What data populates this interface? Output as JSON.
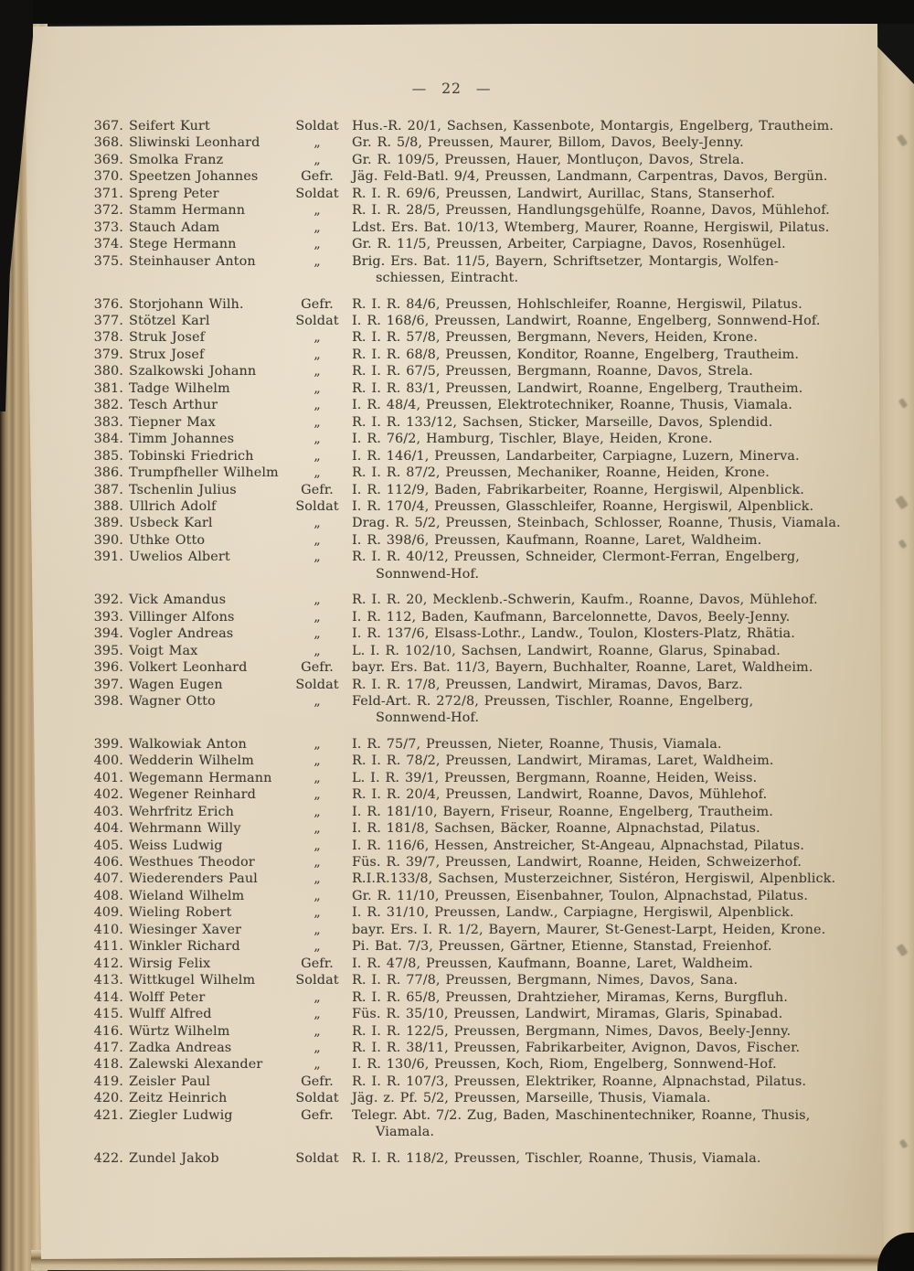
{
  "header": {
    "left_dash": "—",
    "page_number": "22",
    "right_dash": "—"
  },
  "list": {
    "rows": [
      {
        "no": "367.",
        "name": "Seifert Kurt",
        "rank": "Soldat",
        "details": [
          "Hus.-R. 20/1, Sachsen, Kassenbote, Montargis, Engelberg, Trautheim."
        ]
      },
      {
        "no": "368.",
        "name": "Sliwinski Leonhard",
        "rank": "„",
        "details": [
          "Gr. R. 5/8, Preussen, Maurer, Billom, Davos, Beely-Jenny."
        ]
      },
      {
        "no": "369.",
        "name": "Smolka Franz",
        "rank": "„",
        "details": [
          "Gr. R. 109/5, Preussen, Hauer, Montluçon, Davos, Strela."
        ]
      },
      {
        "no": "370.",
        "name": "Speetzen Johannes",
        "rank": "Gefr.",
        "details": [
          "Jäg. Feld-Batl. 9/4, Preussen, Landmann, Carpentras, Davos, Bergün."
        ]
      },
      {
        "no": "371.",
        "name": "Spreng Peter",
        "rank": "Soldat",
        "details": [
          "R. I. R. 69/6, Preussen, Landwirt, Aurillac, Stans, Stanserhof."
        ]
      },
      {
        "no": "372.",
        "name": "Stamm Hermann",
        "rank": "„",
        "details": [
          "R. I. R. 28/5, Preussen, Handlungsgehülfe, Roanne, Davos, Mühlehof."
        ]
      },
      {
        "no": "373.",
        "name": "Stauch Adam",
        "rank": "„",
        "details": [
          "Ldst. Ers. Bat. 10/13, Wtemberg, Maurer, Roanne, Hergiswil, Pilatus."
        ]
      },
      {
        "no": "374.",
        "name": "Stege Hermann",
        "rank": "„",
        "details": [
          "Gr. R. 11/5, Preussen, Arbeiter, Carpiagne, Davos, Rosenhügel."
        ]
      },
      {
        "no": "375.",
        "name": "Steinhauser Anton",
        "rank": "„",
        "details": [
          "Brig. Ers. Bat. 11/5, Bayern, Schriftsetzer, Montargis, Wolfen-",
          "schiessen, Eintracht."
        ]
      },
      {
        "no": "376.",
        "name": "Storjohann Wilh.",
        "rank": "Gefr.",
        "gap_before": true,
        "details": [
          "R. I. R. 84/6, Preussen, Hohlschleifer, Roanne, Hergiswil, Pilatus."
        ]
      },
      {
        "no": "377.",
        "name": "Stötzel Karl",
        "rank": "Soldat",
        "details": [
          "I. R. 168/6, Preussen, Landwirt, Roanne, Engelberg, Sonnwend-Hof."
        ]
      },
      {
        "no": "378.",
        "name": "Struk Josef",
        "rank": "„",
        "details": [
          "R. I. R. 57/8, Preussen, Bergmann, Nevers, Heiden, Krone."
        ]
      },
      {
        "no": "379.",
        "name": "Strux Josef",
        "rank": "„",
        "details": [
          "R. I. R. 68/8, Preussen, Konditor, Roanne, Engelberg, Trautheim."
        ]
      },
      {
        "no": "380.",
        "name": "Szalkowski Johann",
        "rank": "„",
        "details": [
          "R. I. R. 67/5, Preussen, Bergmann, Roanne, Davos, Strela."
        ]
      },
      {
        "no": "381.",
        "name": "Tadge Wilhelm",
        "rank": "„",
        "details": [
          "R. I. R. 83/1, Preussen, Landwirt, Roanne, Engelberg, Trautheim."
        ]
      },
      {
        "no": "382.",
        "name": "Tesch Arthur",
        "rank": "„",
        "details": [
          "I. R. 48/4, Preussen, Elektrotechniker, Roanne, Thusis, Viamala."
        ]
      },
      {
        "no": "383.",
        "name": "Tiepner Max",
        "rank": "„",
        "details": [
          "R. I. R. 133/12, Sachsen, Sticker, Marseille, Davos, Splendid."
        ]
      },
      {
        "no": "384.",
        "name": "Timm Johannes",
        "rank": "„",
        "details": [
          "I. R. 76/2, Hamburg, Tischler, Blaye, Heiden, Krone."
        ]
      },
      {
        "no": "385.",
        "name": "Tobinski Friedrich",
        "rank": "„",
        "details": [
          "I. R. 146/1, Preussen, Landarbeiter, Carpiagne, Luzern, Minerva."
        ]
      },
      {
        "no": "386.",
        "name": "Trumpfheller Wilhelm",
        "rank": "„",
        "details": [
          "R. I. R. 87/2, Preussen, Mechaniker, Roanne, Heiden, Krone."
        ]
      },
      {
        "no": "387.",
        "name": "Tschenlin Julius",
        "rank": "Gefr.",
        "details": [
          "I. R. 112/9, Baden, Fabrikarbeiter, Roanne, Hergiswil, Alpenblick."
        ]
      },
      {
        "no": "388.",
        "name": "Ullrich Adolf",
        "rank": "Soldat",
        "details": [
          "I. R. 170/4, Preussen, Glasschleifer, Roanne, Hergiswil, Alpenblick."
        ]
      },
      {
        "no": "389.",
        "name": "Usbeck Karl",
        "rank": "„",
        "details": [
          "Drag. R. 5/2, Preussen, Steinbach, Schlosser, Roanne, Thusis, Viamala."
        ]
      },
      {
        "no": "390.",
        "name": "Uthke Otto",
        "rank": "„",
        "details": [
          "I. R. 398/6, Preussen, Kaufmann, Roanne, Laret, Waldheim."
        ]
      },
      {
        "no": "391.",
        "name": "Uwelios Albert",
        "rank": "„",
        "details": [
          "R. I. R. 40/12, Preussen, Schneider, Clermont-Ferran, Engelberg,",
          "Sonnwend-Hof."
        ]
      },
      {
        "no": "392.",
        "name": "Vick Amandus",
        "rank": "„",
        "gap_before": true,
        "details": [
          "R. I. R. 20, Mecklenb.-Schwerin, Kaufm., Roanne, Davos, Mühlehof."
        ]
      },
      {
        "no": "393.",
        "name": "Villinger Alfons",
        "rank": "„",
        "details": [
          "I. R. 112, Baden, Kaufmann, Barcelonnette, Davos, Beely-Jenny."
        ]
      },
      {
        "no": "394.",
        "name": "Vogler Andreas",
        "rank": "„",
        "details": [
          "I. R. 137/6, Elsass-Lothr., Landw., Toulon, Klosters-Platz, Rhätia."
        ]
      },
      {
        "no": "395.",
        "name": "Voigt Max",
        "rank": "„",
        "details": [
          "L. I. R. 102/10, Sachsen, Landwirt, Roanne, Glarus, Spinabad."
        ]
      },
      {
        "no": "396.",
        "name": "Volkert Leonhard",
        "rank": "Gefr.",
        "details": [
          "bayr. Ers. Bat. 11/3, Bayern, Buchhalter, Roanne, Laret, Waldheim."
        ]
      },
      {
        "no": "397.",
        "name": "Wagen Eugen",
        "rank": "Soldat",
        "details": [
          "R. I. R. 17/8, Preussen, Landwirt, Miramas, Davos, Barz."
        ]
      },
      {
        "no": "398.",
        "name": "Wagner Otto",
        "rank": "„",
        "details": [
          "Feld-Art. R. 272/8, Preussen, Tischler, Roanne, Engelberg,",
          "Sonnwend-Hof."
        ]
      },
      {
        "no": "399.",
        "name": "Walkowiak Anton",
        "rank": "„",
        "gap_before": true,
        "details": [
          "I. R. 75/7, Preussen, Nieter, Roanne, Thusis, Viamala."
        ]
      },
      {
        "no": "400.",
        "name": "Wedderin Wilhelm",
        "rank": "„",
        "details": [
          "R. I. R. 78/2, Preussen, Landwirt, Miramas, Laret, Waldheim."
        ]
      },
      {
        "no": "401.",
        "name": "Wegemann Hermann",
        "rank": "„",
        "details": [
          "L. I. R. 39/1, Preussen, Bergmann, Roanne, Heiden, Weiss."
        ]
      },
      {
        "no": "402.",
        "name": "Wegener Reinhard",
        "rank": "„",
        "details": [
          "R. I. R. 20/4, Preussen, Landwirt, Roanne, Davos, Mühlehof."
        ]
      },
      {
        "no": "403.",
        "name": "Wehrfritz Erich",
        "rank": "„",
        "details": [
          "I. R. 181/10, Bayern, Friseur, Roanne, Engelberg, Trautheim."
        ]
      },
      {
        "no": "404.",
        "name": "Wehrmann Willy",
        "rank": "„",
        "details": [
          "I. R. 181/8, Sachsen, Bäcker, Roanne, Alpnachstad, Pilatus."
        ]
      },
      {
        "no": "405.",
        "name": "Weiss Ludwig",
        "rank": "„",
        "details": [
          "I. R. 116/6, Hessen, Anstreicher, St-Angeau, Alpnachstad, Pilatus."
        ]
      },
      {
        "no": "406.",
        "name": "Westhues Theodor",
        "rank": "„",
        "details": [
          "Füs. R. 39/7, Preussen, Landwirt, Roanne, Heiden, Schweizerhof."
        ]
      },
      {
        "no": "407.",
        "name": "Wiederenders Paul",
        "rank": "„",
        "details": [
          "R.I.R.133/8, Sachsen, Musterzeichner, Sistéron, Hergiswil, Alpenblick."
        ]
      },
      {
        "no": "408.",
        "name": "Wieland Wilhelm",
        "rank": "„",
        "details": [
          "Gr. R. 11/10, Preussen, Eisenbahner, Toulon, Alpnachstad, Pilatus."
        ]
      },
      {
        "no": "409.",
        "name": "Wieling Robert",
        "rank": "„",
        "details": [
          "I. R. 31/10, Preussen, Landw., Carpiagne, Hergiswil, Alpenblick."
        ]
      },
      {
        "no": "410.",
        "name": "Wiesinger Xaver",
        "rank": "„",
        "details": [
          "bayr. Ers. I. R. 1/2, Bayern, Maurer, St-Genest-Larpt, Heiden, Krone."
        ]
      },
      {
        "no": "411.",
        "name": "Winkler Richard",
        "rank": "„",
        "details": [
          "Pi. Bat. 7/3, Preussen, Gärtner, Etienne, Stanstad, Freienhof."
        ]
      },
      {
        "no": "412.",
        "name": "Wirsig Felix",
        "rank": "Gefr.",
        "details": [
          "I. R. 47/8, Preussen, Kaufmann, Boanne, Laret, Waldheim."
        ]
      },
      {
        "no": "413.",
        "name": "Wittkugel Wilhelm",
        "rank": "Soldat",
        "details": [
          "R. I. R. 77/8, Preussen, Bergmann, Nimes, Davos, Sana."
        ]
      },
      {
        "no": "414.",
        "name": "Wolff Peter",
        "rank": "„",
        "details": [
          "R. I. R. 65/8, Preussen, Drahtzieher, Miramas, Kerns, Burgfluh."
        ]
      },
      {
        "no": "415.",
        "name": "Wulff Alfred",
        "rank": "„",
        "details": [
          "Füs. R. 35/10, Preussen, Landwirt, Miramas, Glaris, Spinabad."
        ]
      },
      {
        "no": "416.",
        "name": "Würtz Wilhelm",
        "rank": "„",
        "details": [
          "R. I. R. 122/5, Preussen, Bergmann, Nimes, Davos, Beely-Jenny."
        ]
      },
      {
        "no": "417.",
        "name": "Zadka Andreas",
        "rank": "„",
        "details": [
          "R. I. R. 38/11, Preussen, Fabrikarbeiter, Avignon, Davos, Fischer."
        ]
      },
      {
        "no": "418.",
        "name": "Zalewski Alexander",
        "rank": "„",
        "details": [
          "I. R. 130/6, Preussen, Koch, Riom, Engelberg, Sonnwend-Hof."
        ]
      },
      {
        "no": "419.",
        "name": "Zeisler Paul",
        "rank": "Gefr.",
        "details": [
          "R. I. R. 107/3, Preussen, Elektriker, Roanne, Alpnachstad, Pilatus."
        ]
      },
      {
        "no": "420.",
        "name": "Zeitz Heinrich",
        "rank": "Soldat",
        "details": [
          "Jäg. z. Pf. 5/2, Preussen, Marseille, Thusis, Viamala."
        ]
      },
      {
        "no": "421.",
        "name": "Ziegler Ludwig",
        "rank": "Gefr.",
        "details": [
          "Telegr. Abt. 7/2. Zug, Baden, Maschinentechniker, Roanne, Thusis,",
          "Viamala."
        ]
      },
      {
        "no": "422.",
        "name": "Zundel Jakob",
        "rank": "Soldat",
        "gap_before": true,
        "details": [
          "R. I. R. 118/2, Preussen, Tischler, Roanne, Thusis, Viamala."
        ]
      }
    ]
  },
  "colors": {
    "background": "#141412",
    "paper": "#e0d3bc",
    "ink": "#3d3931",
    "fore_edge_tan": "#b69d78"
  }
}
